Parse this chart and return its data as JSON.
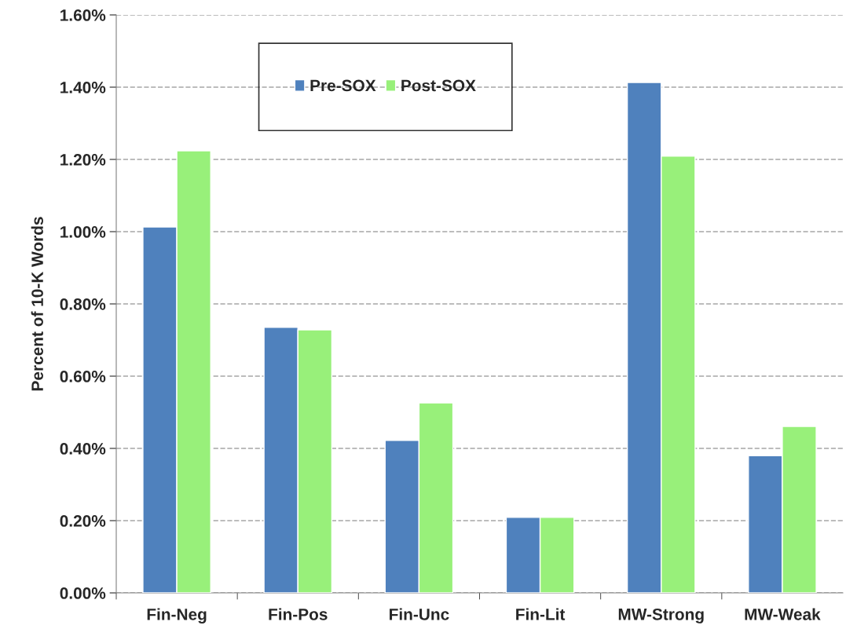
{
  "chart_data": {
    "type": "bar",
    "ylabel": "Percent of 10-K Words",
    "categories": [
      "Fin-Neg",
      "Fin-Pos",
      "Fin-Unc",
      "Fin-Lit",
      "MW-Strong",
      "MW-Weak"
    ],
    "series": [
      {
        "name": "Pre-SOX",
        "color": "#4f81bd",
        "values": [
          1.013,
          0.735,
          0.422,
          0.209,
          1.413,
          0.38
        ]
      },
      {
        "name": "Post-SOX",
        "color": "#98f07a",
        "values": [
          1.224,
          0.728,
          0.526,
          0.209,
          1.209,
          0.461
        ]
      }
    ],
    "ylim": [
      0,
      1.6
    ],
    "yticks": [
      {
        "value": 0,
        "label": "0.00%"
      },
      {
        "value": 0.2,
        "label": "0.20%"
      },
      {
        "value": 0.4,
        "label": "0.40%"
      },
      {
        "value": 0.6,
        "label": "0.60%"
      },
      {
        "value": 0.8,
        "label": "0.80%"
      },
      {
        "value": 1.0,
        "label": "1.00%"
      },
      {
        "value": 1.2,
        "label": "1.20%"
      },
      {
        "value": 1.4,
        "label": "1.40%"
      },
      {
        "value": 1.6,
        "label": "1.60%"
      }
    ],
    "grid": "y",
    "line_style": "dashed",
    "legend": "top left"
  }
}
